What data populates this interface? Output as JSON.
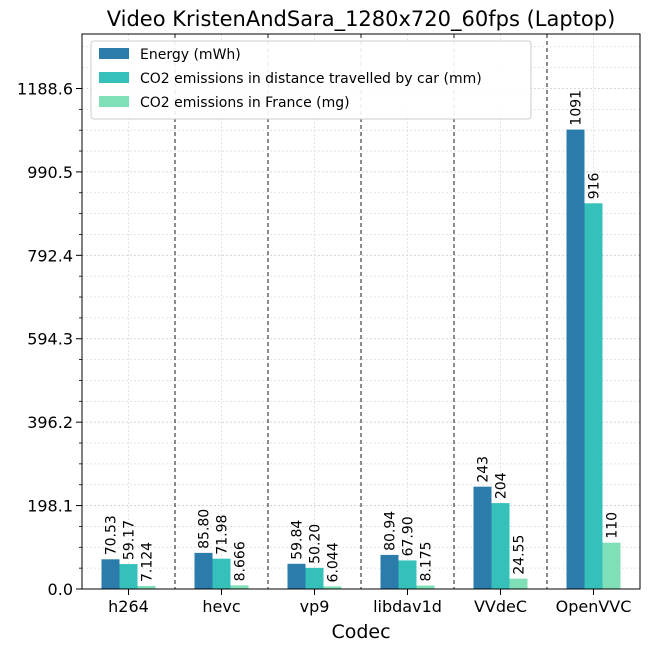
{
  "chart_data": {
    "type": "bar",
    "title": "Video KristenAndSara_1280x720_60fps (Laptop)",
    "xlabel": "Codec",
    "ylabel": "",
    "categories": [
      "h264",
      "hevc",
      "vp9",
      "libdav1d",
      "VVdeC",
      "OpenVVC"
    ],
    "series": [
      {
        "name": "Energy (mWh)",
        "color": "#2b7bab",
        "values": [
          70.53,
          85.8,
          59.84,
          80.94,
          243,
          1091
        ],
        "labels": [
          "70.53",
          "85.80",
          "59.84",
          "80.94",
          "243",
          "1091"
        ]
      },
      {
        "name": "CO2 emissions in distance travelled by car (mm)",
        "color": "#35c0b9",
        "values": [
          59.17,
          71.98,
          50.2,
          67.9,
          204,
          916
        ],
        "labels": [
          "59.17",
          "71.98",
          "50.20",
          "67.90",
          "204",
          "916"
        ]
      },
      {
        "name": "CO2 emissions in France (mg)",
        "color": "#7fdfb6",
        "values": [
          7.124,
          8.666,
          6.044,
          8.175,
          24.55,
          110
        ],
        "labels": [
          "7.124",
          "8.666",
          "6.044",
          "8.175",
          "24.55",
          "110"
        ]
      }
    ],
    "ylim": [
      0,
      1188.6
    ],
    "ymax": 1188.6,
    "yticks": [
      0,
      198.1,
      396.2,
      594.3,
      792.4,
      990.5,
      1188.6
    ],
    "ytick_labels": [
      "0.0",
      "198.1",
      "396.2",
      "594.3",
      "792.4",
      "990.5",
      "1188.6"
    ],
    "grid": true,
    "legend_position": "upper-left"
  }
}
